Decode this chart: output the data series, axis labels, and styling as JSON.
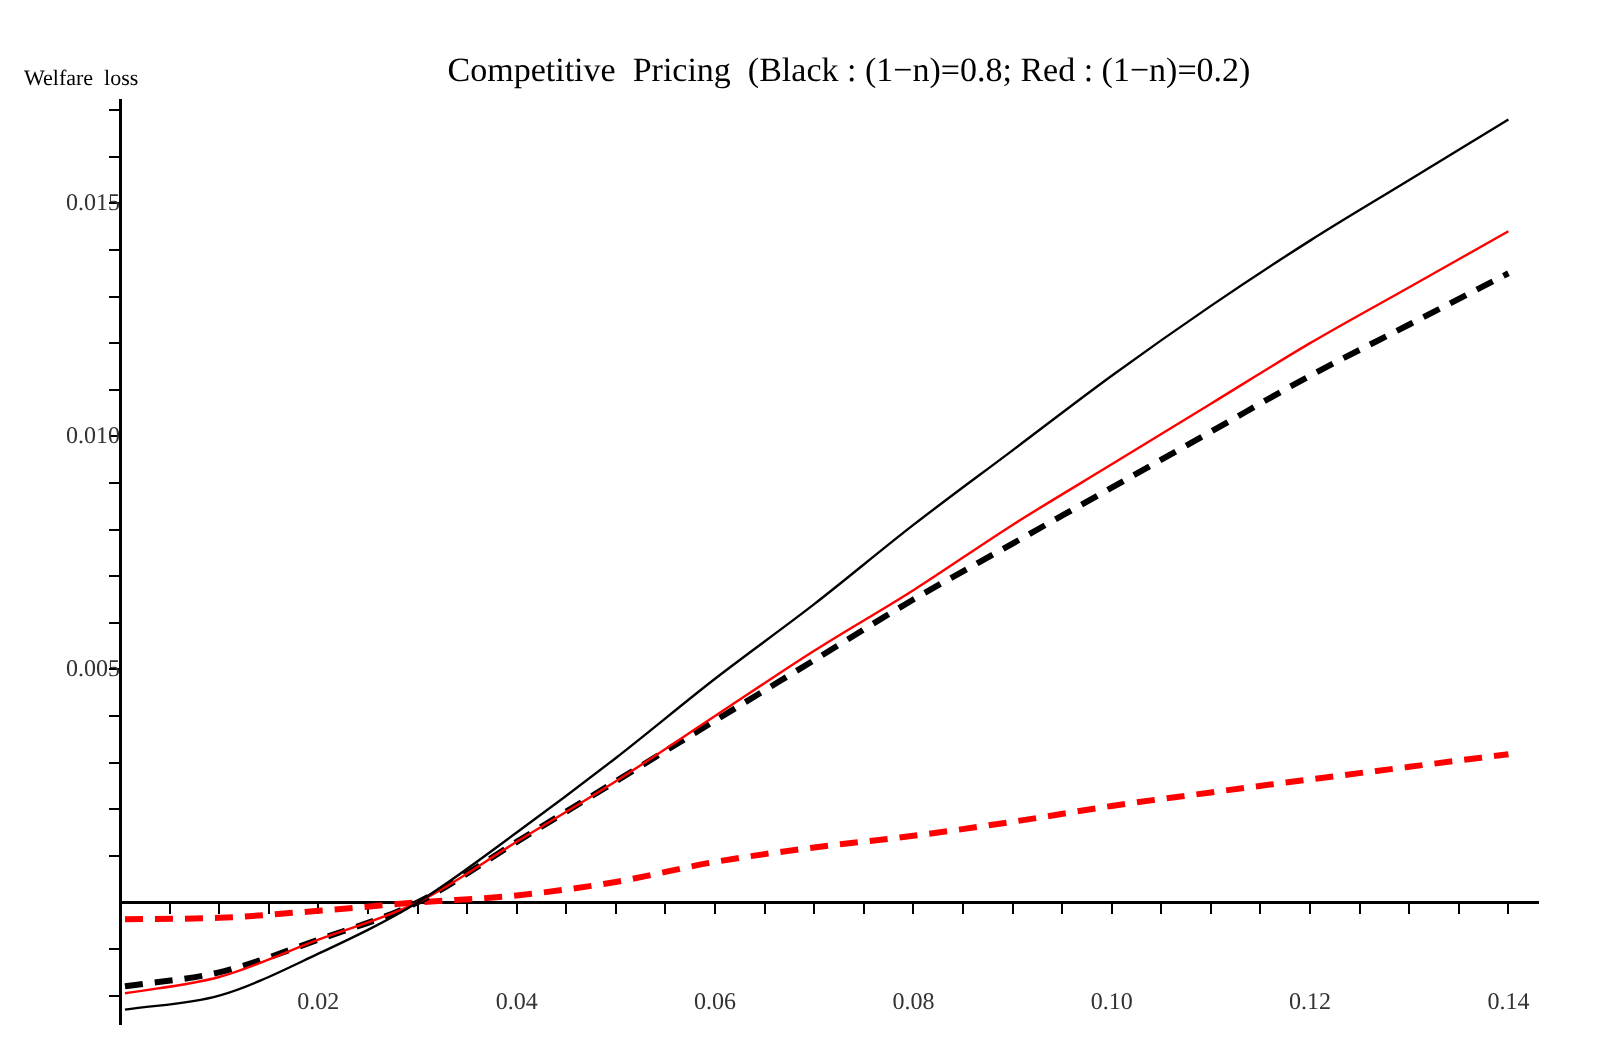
{
  "chart_data": {
    "type": "line",
    "title": "Competitive  Pricing  (Black : (1−n)=0.8; Red : (1−n)=0.2)",
    "ylabel": "Welfare  loss",
    "xlim": [
      0,
      0.143
    ],
    "ylim": [
      -0.0026,
      0.0172
    ],
    "xticks": [
      {
        "value": 0.005,
        "label": null
      },
      {
        "value": 0.01,
        "label": null
      },
      {
        "value": 0.015,
        "label": null
      },
      {
        "value": 0.02,
        "label": "0.02"
      },
      {
        "value": 0.025,
        "label": null
      },
      {
        "value": 0.03,
        "label": null
      },
      {
        "value": 0.035,
        "label": null
      },
      {
        "value": 0.04,
        "label": "0.04"
      },
      {
        "value": 0.045,
        "label": null
      },
      {
        "value": 0.05,
        "label": null
      },
      {
        "value": 0.055,
        "label": null
      },
      {
        "value": 0.06,
        "label": "0.06"
      },
      {
        "value": 0.065,
        "label": null
      },
      {
        "value": 0.07,
        "label": null
      },
      {
        "value": 0.075,
        "label": null
      },
      {
        "value": 0.08,
        "label": "0.08"
      },
      {
        "value": 0.085,
        "label": null
      },
      {
        "value": 0.09,
        "label": null
      },
      {
        "value": 0.095,
        "label": null
      },
      {
        "value": 0.1,
        "label": "0.10"
      },
      {
        "value": 0.105,
        "label": null
      },
      {
        "value": 0.11,
        "label": null
      },
      {
        "value": 0.115,
        "label": null
      },
      {
        "value": 0.12,
        "label": "0.12"
      },
      {
        "value": 0.125,
        "label": null
      },
      {
        "value": 0.13,
        "label": null
      },
      {
        "value": 0.135,
        "label": null
      },
      {
        "value": 0.14,
        "label": "0.14"
      }
    ],
    "yticks": [
      {
        "value": -0.002,
        "label": null
      },
      {
        "value": -0.001,
        "label": null
      },
      {
        "value": 0.001,
        "label": null
      },
      {
        "value": 0.002,
        "label": null
      },
      {
        "value": 0.003,
        "label": null
      },
      {
        "value": 0.004,
        "label": null
      },
      {
        "value": 0.005,
        "label": "0.005"
      },
      {
        "value": 0.006,
        "label": null
      },
      {
        "value": 0.007,
        "label": null
      },
      {
        "value": 0.008,
        "label": null
      },
      {
        "value": 0.009,
        "label": null
      },
      {
        "value": 0.01,
        "label": "0.010"
      },
      {
        "value": 0.011,
        "label": null
      },
      {
        "value": 0.012,
        "label": null
      },
      {
        "value": 0.013,
        "label": null
      },
      {
        "value": 0.014,
        "label": null
      },
      {
        "value": 0.015,
        "label": "0.015"
      },
      {
        "value": 0.016,
        "label": null
      },
      {
        "value": 0.017,
        "label": null
      }
    ],
    "x": [
      0.0005,
      0.01,
      0.02,
      0.03,
      0.04,
      0.05,
      0.06,
      0.07,
      0.08,
      0.09,
      0.1,
      0.11,
      0.12,
      0.13,
      0.14
    ],
    "series": [
      {
        "color": "#000000",
        "line_style": "solid",
        "values": [
          -0.0023,
          -0.002,
          -0.0011,
          0,
          0.0015,
          0.0031,
          0.0048,
          0.0064,
          0.0081,
          0.0097,
          0.0113,
          0.0128,
          0.0142,
          0.0155,
          0.0168
        ]
      },
      {
        "color": "#ff0000",
        "line_style": "solid",
        "values": [
          -0.00195,
          -0.0016,
          -0.0008,
          0,
          0.0013,
          0.0026,
          0.004,
          0.0054,
          0.0067,
          0.0081,
          0.0094,
          0.0107,
          0.012,
          0.0132,
          0.0144
        ]
      },
      {
        "color": "#000000",
        "line_style": "dashed",
        "values": [
          -0.0018,
          -0.0015,
          -0.0008,
          0,
          0.0013,
          0.0026,
          0.0039,
          0.0052,
          0.0065,
          0.0077,
          0.0089,
          0.0101,
          0.0113,
          0.0124,
          0.0135
        ]
      },
      {
        "color": "#ff0000",
        "line_style": "dashed",
        "values": [
          -0.00036,
          -0.00033,
          -0.00018,
          0,
          0.00015,
          0.00044,
          0.00087,
          0.00118,
          0.00143,
          0.00173,
          0.00207,
          0.00236,
          0.00264,
          0.00291,
          0.00318
        ]
      }
    ],
    "grid": false,
    "legend": false,
    "marker": "none"
  }
}
